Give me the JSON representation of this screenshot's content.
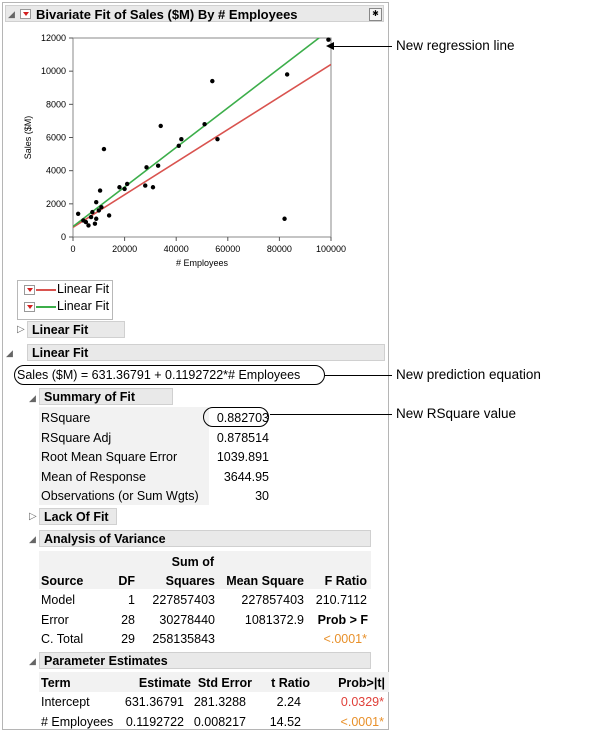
{
  "report": {
    "title": "Bivariate Fit of Sales ($M) By # Employees"
  },
  "chart_data": {
    "type": "scatter",
    "xlabel": "# Employees",
    "ylabel": "Sales ($M)",
    "xlim": [
      0,
      100000
    ],
    "ylim": [
      0,
      12000
    ],
    "x_ticks": [
      "0",
      "20000",
      "40000",
      "60000",
      "80000",
      "100000"
    ],
    "y_ticks": [
      "0",
      "2000",
      "4000",
      "6000",
      "8000",
      "10000",
      "12000"
    ],
    "points": [
      [
        2000,
        1400
      ],
      [
        4000,
        1000
      ],
      [
        5000,
        900
      ],
      [
        6000,
        700
      ],
      [
        7000,
        1200
      ],
      [
        7500,
        1500
      ],
      [
        8500,
        800
      ],
      [
        9000,
        1100
      ],
      [
        9000,
        2100
      ],
      [
        10000,
        1600
      ],
      [
        10500,
        2800
      ],
      [
        11000,
        1800
      ],
      [
        12000,
        5300
      ],
      [
        14000,
        1300
      ],
      [
        18000,
        3000
      ],
      [
        20000,
        2900
      ],
      [
        21000,
        3200
      ],
      [
        28000,
        3100
      ],
      [
        28500,
        4200
      ],
      [
        31000,
        3000
      ],
      [
        33000,
        4300
      ],
      [
        34000,
        6700
      ],
      [
        41000,
        5500
      ],
      [
        42000,
        5900
      ],
      [
        51000,
        6800
      ],
      [
        54000,
        9400
      ],
      [
        56000,
        5900
      ],
      [
        82000,
        1100
      ],
      [
        83000,
        9800
      ],
      [
        99000,
        11900
      ]
    ],
    "fits": [
      {
        "name": "Linear Fit",
        "color": "#d9534f",
        "intercept": 587,
        "slope": 0.0982
      },
      {
        "name": "Linear Fit",
        "color": "#3cae4a",
        "intercept": 631.36791,
        "slope": 0.1192722
      }
    ],
    "grid": false
  },
  "legend": {
    "items": [
      "Linear Fit",
      "Linear Fit"
    ]
  },
  "sections": {
    "linear_fit_1": "Linear Fit",
    "linear_fit_2": "Linear Fit",
    "equation": "Sales ($M) = 631.36791 + 0.1192722*# Employees",
    "summary_title": "Summary of Fit",
    "summary_rows": [
      {
        "label": "RSquare",
        "value": "0.882703"
      },
      {
        "label": "RSquare Adj",
        "value": "0.878514"
      },
      {
        "label": "Root Mean Square Error",
        "value": "1039.891"
      },
      {
        "label": "Mean of Response",
        "value": "3644.95"
      },
      {
        "label": "Observations (or Sum Wgts)",
        "value": "30"
      }
    ],
    "lack_of_fit": "Lack Of Fit",
    "anova_title": "Analysis of Variance",
    "anova_headers": {
      "source": "Source",
      "df": "DF",
      "ss_top": "Sum of",
      "ss": "Squares",
      "ms": "Mean Square",
      "f": "F Ratio"
    },
    "anova_rows": [
      {
        "source": "Model",
        "df": "1",
        "ss": "227857403",
        "ms": "227857403",
        "f": "210.7112"
      },
      {
        "source": "Error",
        "df": "28",
        "ss": "30278440",
        "ms": "1081372.9",
        "f": "Prob > F"
      },
      {
        "source": "C. Total",
        "df": "29",
        "ss": "258135843",
        "ms": "",
        "f": "<.0001*"
      }
    ],
    "param_title": "Parameter Estimates",
    "param_headers": {
      "term": "Term",
      "est": "Estimate",
      "se": "Std Error",
      "t": "t Ratio",
      "p": "Prob>|t|"
    },
    "param_rows": [
      {
        "term": "Intercept",
        "est": "631.36791",
        "se": "281.3288",
        "t": "2.24",
        "p": "0.0329*"
      },
      {
        "term": "# Employees",
        "est": "0.1192722",
        "se": "0.008217",
        "t": "14.52",
        "p": "<.0001*"
      }
    ]
  },
  "annotations": {
    "regression": "New regression line",
    "equation": "New prediction equation",
    "rsquare": "New RSquare value"
  }
}
